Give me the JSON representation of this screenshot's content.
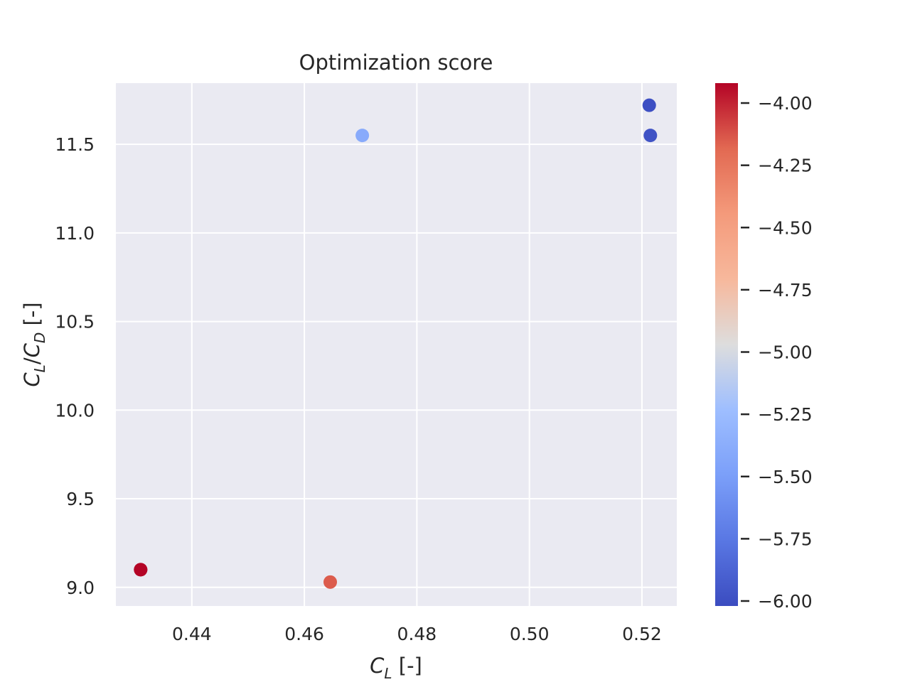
{
  "chart_data": {
    "type": "scatter",
    "title": "Optimization score",
    "xlabel": {
      "symbol": "C",
      "subscript": "L",
      "suffix": " [-]"
    },
    "ylabel": {
      "num_symbol": "C",
      "num_sub": "L",
      "slash": "/",
      "den_symbol": "C",
      "den_sub": "D",
      "suffix": " [-]"
    },
    "xlim": [
      0.4265,
      0.5262
    ],
    "ylim": [
      8.895,
      11.845
    ],
    "x_ticks": [
      0.44,
      0.46,
      0.48,
      0.5,
      0.52
    ],
    "x_tick_labels": [
      "0.44",
      "0.46",
      "0.48",
      "0.50",
      "0.52"
    ],
    "y_ticks": [
      9.0,
      9.5,
      10.0,
      10.5,
      11.0,
      11.5
    ],
    "y_tick_labels": [
      "9.0",
      "9.5",
      "10.0",
      "10.5",
      "11.0",
      "11.5"
    ],
    "grid": true,
    "points": [
      {
        "x": 0.4309,
        "y": 9.1,
        "c": -3.9
      },
      {
        "x": 0.4309,
        "y": 9.1,
        "c": -3.9
      },
      {
        "x": 0.4646,
        "y": 9.03,
        "c": -4.15
      },
      {
        "x": 0.4703,
        "y": 11.55,
        "c": -5.4
      },
      {
        "x": 0.5213,
        "y": 11.72,
        "c": -6.0
      },
      {
        "x": 0.5215,
        "y": 11.55,
        "c": -5.98
      }
    ],
    "colorbar": {
      "cmap": "coolwarm",
      "range": [
        -6.02,
        -3.92
      ],
      "ticks": [
        -4.0,
        -4.25,
        -4.5,
        -4.75,
        -5.0,
        -5.25,
        -5.5,
        -5.75,
        -6.0
      ],
      "tick_labels": [
        "−4.00",
        "−4.25",
        "−4.50",
        "−4.75",
        "−5.00",
        "−5.25",
        "−5.50",
        "−5.75",
        "−6.00"
      ]
    },
    "colors": {
      "plot_background": "#eaeaf2",
      "grid": "#ffffff",
      "cmap_low": "#3b4cc0",
      "cmap_mid": "#dddddd",
      "cmap_high": "#b40426"
    }
  }
}
